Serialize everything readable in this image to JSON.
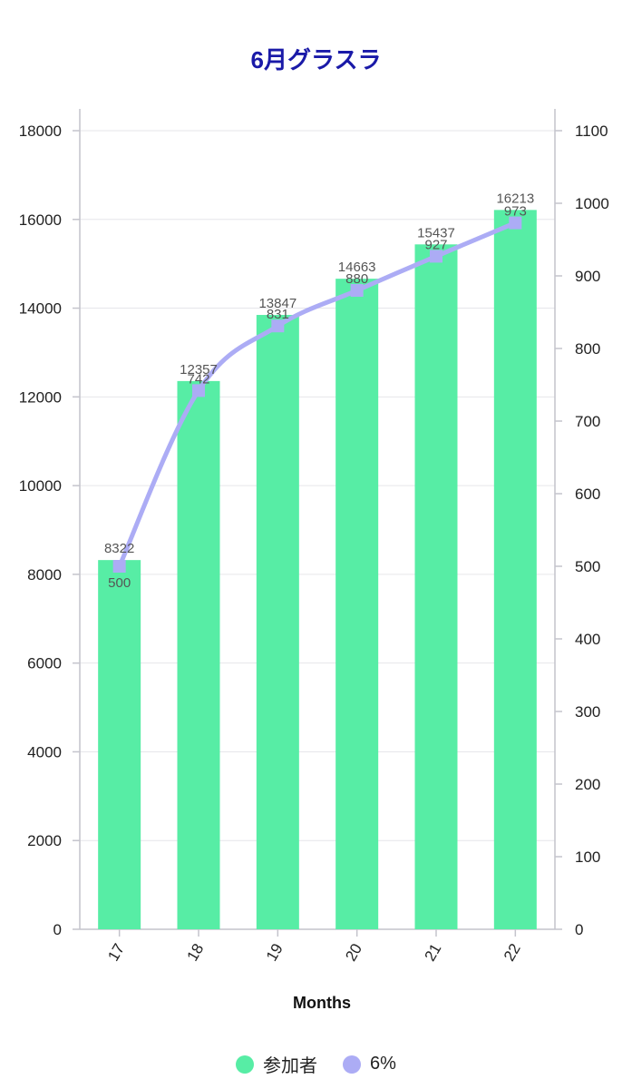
{
  "chart_data": {
    "type": "bar",
    "title": "6月グラスラ",
    "xlabel": "Months",
    "categories": [
      "17",
      "18",
      "19",
      "20",
      "21",
      "22"
    ],
    "y_left": {
      "min": 0,
      "max": 18000,
      "step": 2000
    },
    "y_right": {
      "min": 0,
      "max": 1100,
      "step": 100
    },
    "series": [
      {
        "name": "参加者",
        "type": "bar",
        "axis": "left",
        "color": "#57eda5",
        "values": [
          8322,
          12357,
          13847,
          14663,
          15437,
          16213
        ]
      },
      {
        "name": "6%",
        "type": "line",
        "axis": "right",
        "color": "#acacf5",
        "values": [
          500,
          742,
          831,
          880,
          927,
          973
        ]
      }
    ],
    "grid": true,
    "legend": "bottom-center"
  }
}
